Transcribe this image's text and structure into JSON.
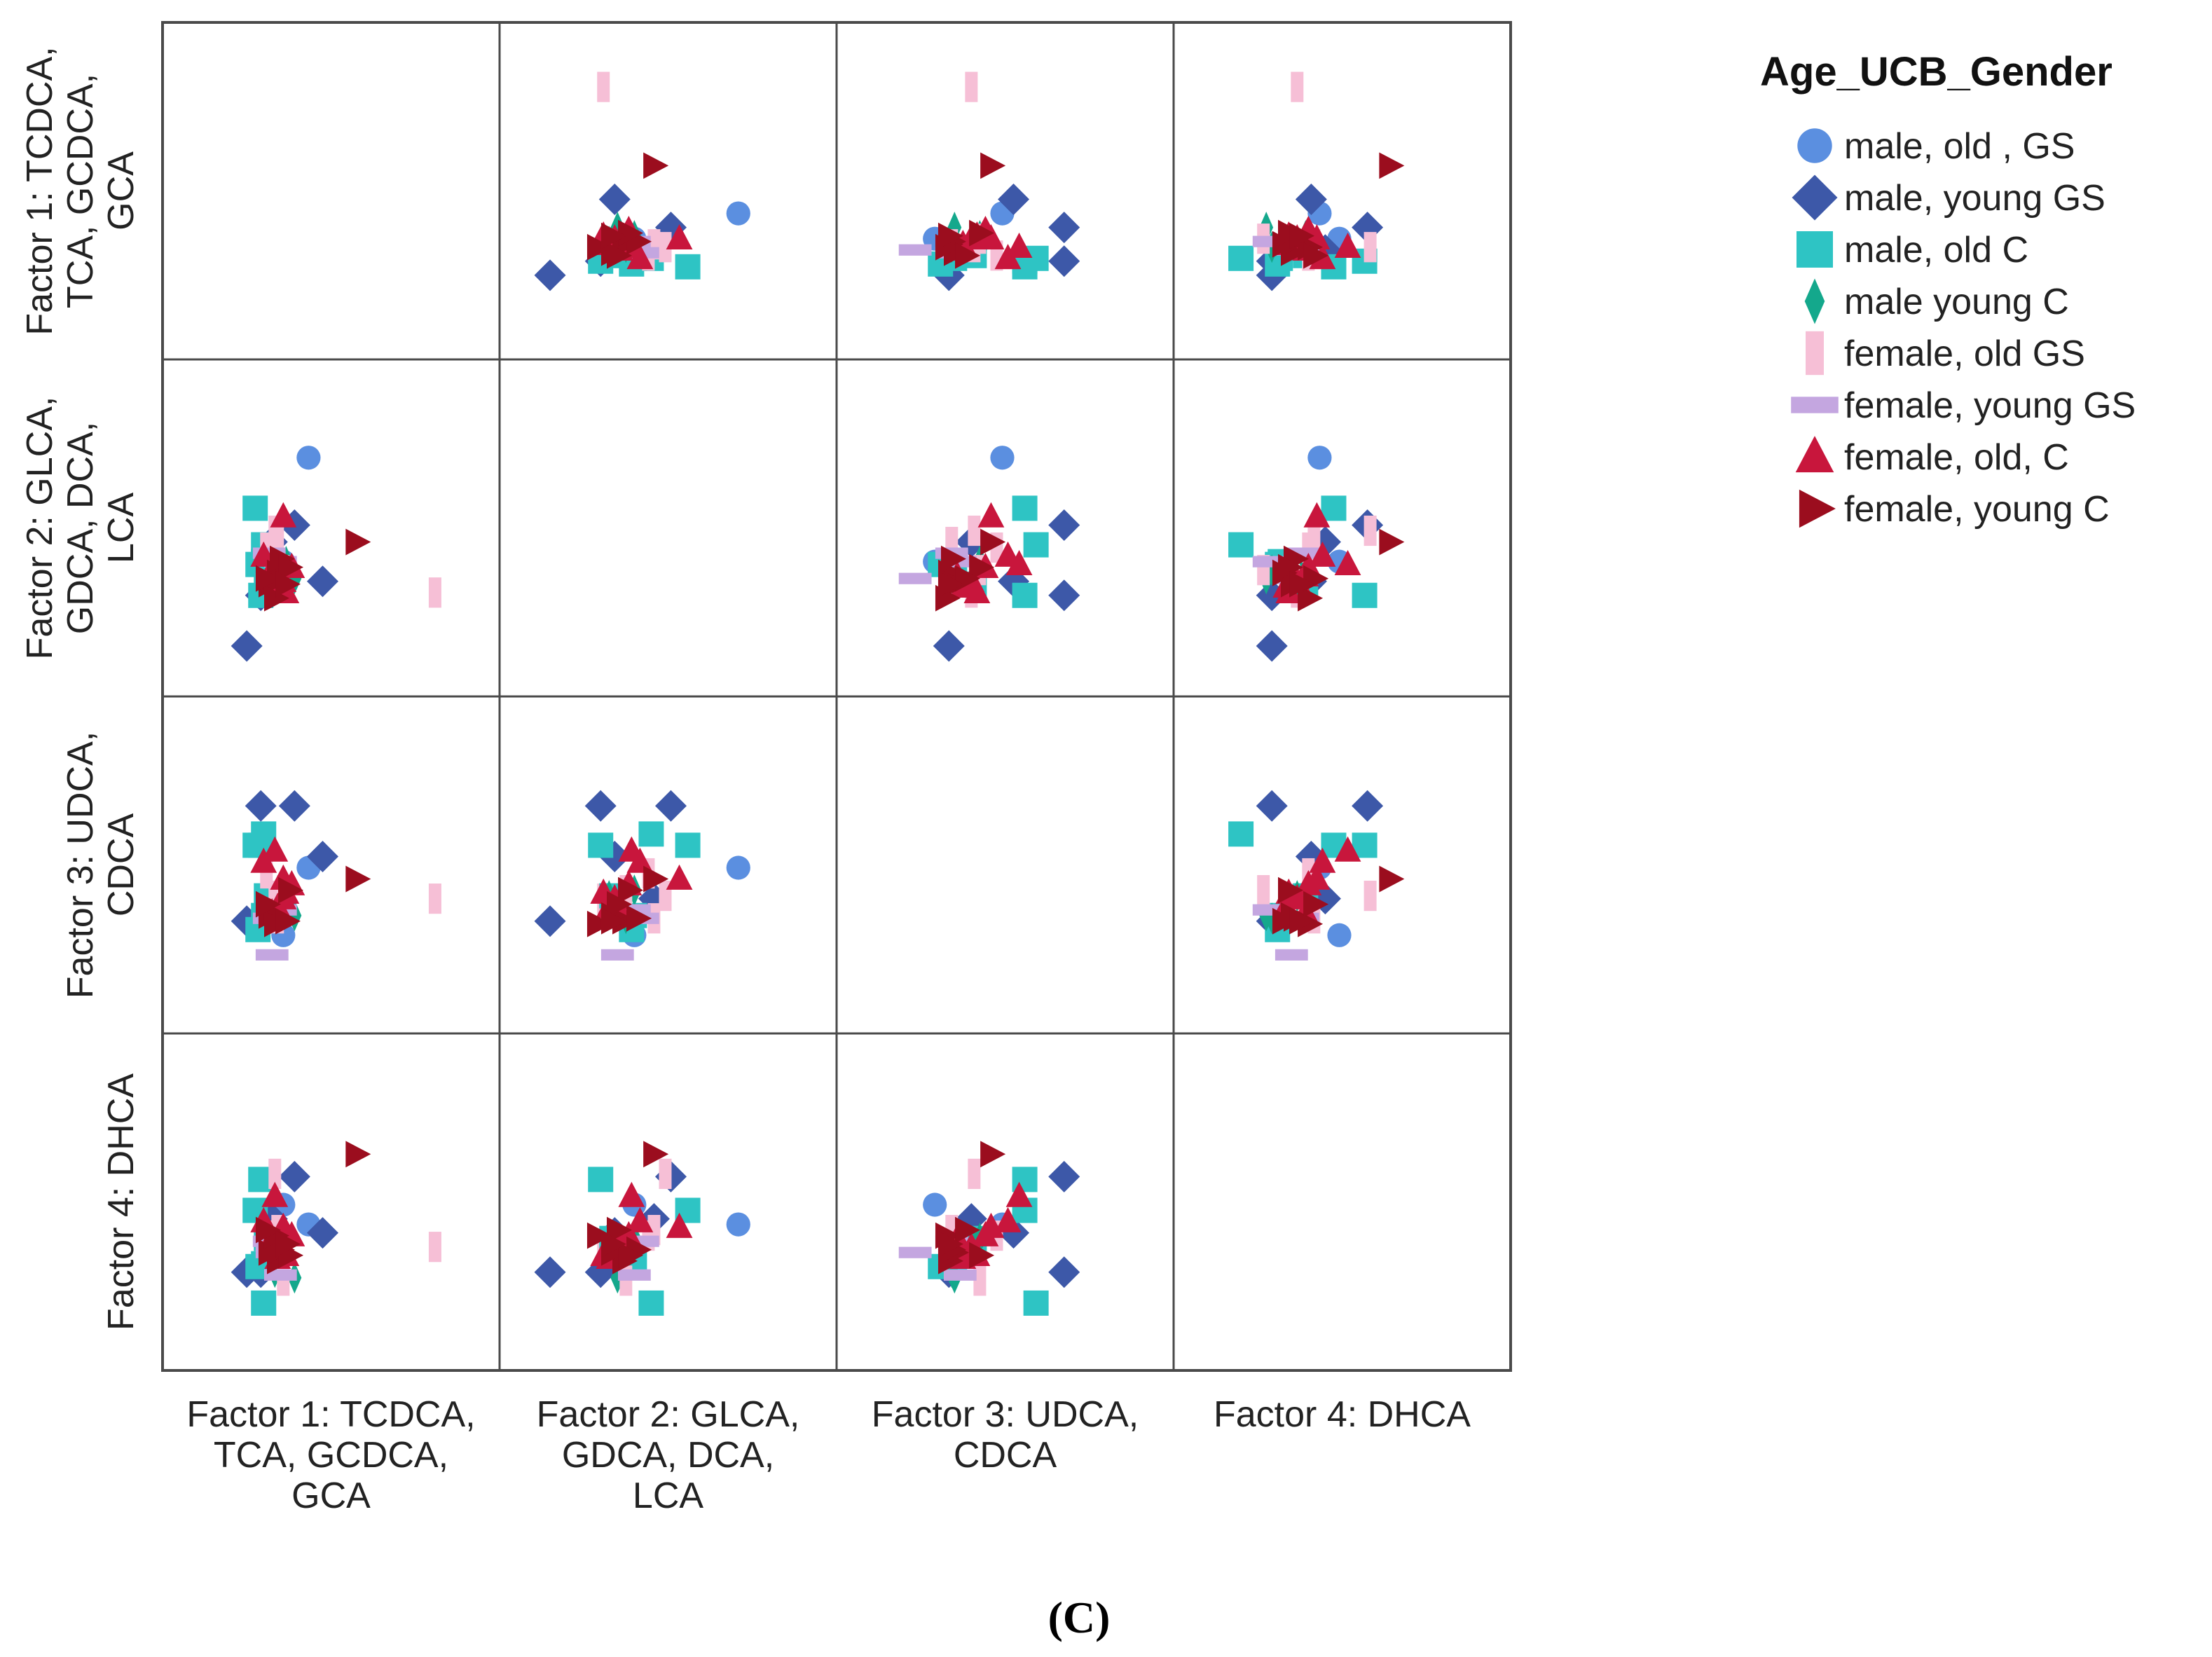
{
  "chart_data": {
    "type": "scatter",
    "variant": "scatterplot-matrix",
    "variables": [
      "Factor 1: TCDCA, TCA, GCDCA, GCA",
      "Factor 2: GLCA, GDCA, DCA, LCA",
      "Factor 3: UDCA, CDCA",
      "Factor 4: DHCA"
    ],
    "column_labels": [
      [
        "Factor 1: TCDCA,",
        "TCA, GCDCA,",
        "GCA"
      ],
      [
        "Factor 2: GLCA,",
        "GDCA, DCA,",
        "LCA"
      ],
      [
        "Factor 3: UDCA,",
        "CDCA"
      ],
      [
        "Factor 4: DHCA"
      ]
    ],
    "row_labels": [
      [
        "Factor 1: TCDCA,",
        "TCA, GCDCA,",
        "GCA"
      ],
      [
        "Factor 2: GLCA,",
        "GDCA, DCA,",
        "LCA"
      ],
      [
        "Factor 3: UDCA,",
        "CDCA"
      ],
      [
        "Factor 4: DHCA"
      ]
    ],
    "axis_range": [
      -3,
      6
    ],
    "grid": false,
    "legend": {
      "title": "Age_UCB_Gender",
      "position": "right",
      "entries": [
        {
          "label": "male, old , GS",
          "shape": "circle",
          "color": "#5b8fe0"
        },
        {
          "label": "male, young  GS",
          "shape": "diamond",
          "color": "#3d58a8"
        },
        {
          "label": "male, old C",
          "shape": "square",
          "color": "#2ec4c4"
        },
        {
          "label": "male young C",
          "shape": "thin-diamond",
          "color": "#14a88c"
        },
        {
          "label": "female, old GS",
          "shape": "tall-rect",
          "color": "#f6bfd6"
        },
        {
          "label": "female, young GS",
          "shape": "wide-rect",
          "color": "#c4a6e0"
        },
        {
          "label": "female, old, C",
          "shape": "triangle-up",
          "color": "#c8163c"
        },
        {
          "label": "female, young C",
          "shape": "triangle-right",
          "color": "#9b0d1e"
        }
      ]
    },
    "caption": "(C)",
    "subjects": [
      {
        "group": 4,
        "values": [
          5.2,
          -0.8,
          0.3,
          -0.1
        ]
      },
      {
        "group": 0,
        "values": [
          0.7,
          4.0,
          1.4,
          0.7
        ]
      },
      {
        "group": 0,
        "values": [
          -0.2,
          0.3,
          -1.0,
          1.4
        ]
      },
      {
        "group": 1,
        "values": [
          -1.0,
          -0.9,
          3.6,
          -1.0
        ]
      },
      {
        "group": 1,
        "values": [
          0.2,
          1.6,
          3.6,
          2.4
        ]
      },
      {
        "group": 1,
        "values": [
          1.2,
          -0.4,
          1.8,
          0.4
        ]
      },
      {
        "group": 1,
        "values": [
          -1.5,
          -2.7,
          -0.5,
          -1.0
        ]
      },
      {
        "group": 1,
        "values": [
          -0.6,
          1.0,
          0.3,
          0.9
        ]
      },
      {
        "group": 2,
        "values": [
          -0.9,
          0.3,
          -0.3,
          -0.7
        ]
      },
      {
        "group": 2,
        "values": [
          -1.2,
          2.2,
          2.2,
          1.2
        ]
      },
      {
        "group": 2,
        "values": [
          -1.0,
          -0.9,
          2.2,
          2.3
        ]
      },
      {
        "group": 2,
        "values": [
          -0.9,
          0.9,
          2.6,
          -2.1
        ]
      },
      {
        "group": 2,
        "values": [
          -0.8,
          -0.5,
          0.4,
          0.2
        ]
      },
      {
        "group": 2,
        "values": [
          -1.1,
          0.2,
          -0.8,
          -0.8
        ]
      },
      {
        "group": 3,
        "values": [
          -0.3,
          -0.6,
          0.4,
          -0.1
        ]
      },
      {
        "group": 3,
        "values": [
          -0.5,
          0.0,
          -0.4,
          -1.0
        ]
      },
      {
        "group": 3,
        "values": [
          -0.1,
          0.3,
          0.6,
          0.2
        ]
      },
      {
        "group": 3,
        "values": [
          0.2,
          -0.3,
          -0.3,
          -1.2
        ]
      },
      {
        "group": 4,
        "values": [
          -0.8,
          0.8,
          1.2,
          0.3
        ]
      },
      {
        "group": 4,
        "values": [
          -0.4,
          1.0,
          -0.4,
          0.5
        ]
      },
      {
        "group": 4,
        "values": [
          -0.5,
          1.4,
          0.4,
          2.5
        ]
      },
      {
        "group": 4,
        "values": [
          -0.2,
          0.0,
          0.6,
          -1.3
        ]
      },
      {
        "group": 5,
        "values": [
          -0.6,
          -0.3,
          -1.7,
          -0.3
        ]
      },
      {
        "group": 5,
        "values": [
          -0.7,
          0.6,
          -0.4,
          0.1
        ]
      },
      {
        "group": 5,
        "values": [
          -0.3,
          0.3,
          -0.1,
          -1.1
        ]
      },
      {
        "group": 6,
        "values": [
          0.1,
          0.1,
          0.8,
          0.3
        ]
      },
      {
        "group": 6,
        "values": [
          -0.2,
          1.9,
          1.0,
          0.6
        ]
      },
      {
        "group": 6,
        "values": [
          -0.4,
          -0.6,
          0.0,
          -0.5
        ]
      },
      {
        "group": 6,
        "values": [
          -0.6,
          -0.2,
          -0.2,
          0.2
        ]
      },
      {
        "group": 6,
        "values": [
          -0.2,
          -0.4,
          0.3,
          -0.1
        ]
      },
      {
        "group": 6,
        "values": [
          -0.9,
          0.5,
          1.6,
          0.8
        ]
      },
      {
        "group": 6,
        "values": [
          -0.1,
          -0.8,
          0.5,
          -0.4
        ]
      },
      {
        "group": 6,
        "values": [
          -0.5,
          0.2,
          2.0,
          1.7
        ]
      },
      {
        "group": 7,
        "values": [
          -0.4,
          -0.1,
          -0.5,
          -0.6
        ]
      },
      {
        "group": 7,
        "values": [
          -0.7,
          -0.5,
          -0.3,
          -0.3
        ]
      },
      {
        "group": 7,
        "values": [
          -0.3,
          0.4,
          -0.4,
          -0.2
        ]
      },
      {
        "group": 7,
        "values": [
          -0.5,
          -1.0,
          -0.6,
          0.3
        ]
      },
      {
        "group": 7,
        "values": [
          0.0,
          0.1,
          0.6,
          -0.4
        ]
      },
      {
        "group": 7,
        "values": [
          -0.8,
          -0.3,
          0.1,
          0.5
        ]
      },
      {
        "group": 7,
        "values": [
          -0.1,
          -0.5,
          -0.5,
          0.0
        ]
      },
      {
        "group": 7,
        "values": [
          2.4,
          1.0,
          1.0,
          3.2
        ]
      }
    ]
  }
}
